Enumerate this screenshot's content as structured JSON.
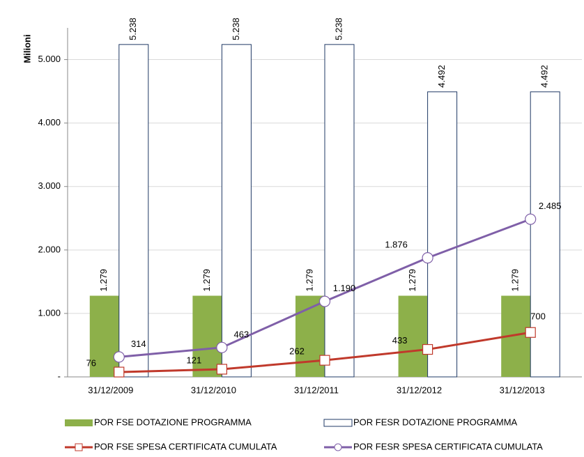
{
  "chart_data": {
    "type": "bar_line",
    "y_label": "Milioni",
    "categories": [
      "31/12/2009",
      "31/12/2010",
      "31/12/2011",
      "31/12/2012",
      "31/12/2013"
    ],
    "ylim": [
      0,
      5500
    ],
    "yticks": [
      {
        "value": 0,
        "label": "-"
      },
      {
        "value": 1000,
        "label": "1.000"
      },
      {
        "value": 2000,
        "label": "2.000"
      },
      {
        "value": 3000,
        "label": "3.000"
      },
      {
        "value": 4000,
        "label": "4.000"
      },
      {
        "value": 5000,
        "label": "5.000"
      }
    ],
    "grid": true,
    "legend": "bottom",
    "series": [
      {
        "name": "POR FSE DOTAZIONE PROGRAMMA",
        "kind": "bar",
        "color": "#8db04a",
        "values": [
          1279,
          1279,
          1279,
          1279,
          1279
        ],
        "value_labels": [
          "1.279",
          "1.279",
          "1.279",
          "1.279",
          "1.279"
        ]
      },
      {
        "name": "POR FESR DOTAZIONE PROGRAMMA",
        "kind": "bar",
        "color": "#1f3864",
        "fill": "#ffffff",
        "values": [
          5238,
          5238,
          5238,
          4492,
          4492
        ],
        "value_labels": [
          "5.238",
          "5.238",
          "5.238",
          "4.492",
          "4.492"
        ]
      },
      {
        "name": "POR FSE SPESA CERTIFICATA CUMULATA",
        "kind": "line",
        "marker": "square",
        "color": "#c0392b",
        "values": [
          76,
          121,
          262,
          433,
          700
        ]
      },
      {
        "name": "POR FESR SPESA CERTIFICATA CUMULATA",
        "kind": "line",
        "marker": "circle",
        "color": "#7f5fa8",
        "values": [
          314,
          463,
          1190,
          1876,
          2485
        ],
        "value_labels": [
          "314",
          "463",
          "1.190",
          "1.876",
          "2.485"
        ]
      }
    ]
  }
}
